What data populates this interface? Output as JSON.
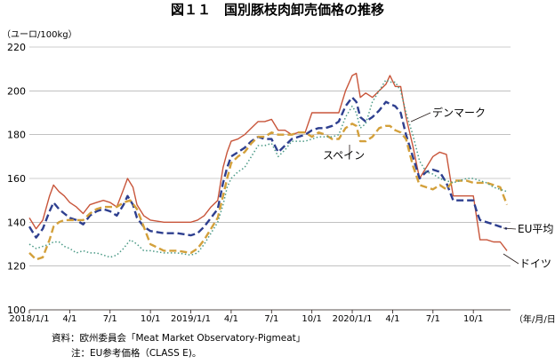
{
  "chart_data": {
    "type": "line",
    "title": "図１１　国別豚枝肉卸売価格の推移",
    "ylabel": "（ユーロ/100kg）",
    "xlabel": "（年/月/日）",
    "ylim": [
      100,
      220
    ],
    "yticks": [
      100,
      120,
      140,
      160,
      180,
      200,
      220
    ],
    "grid": "horizontal",
    "legend": "inline labels",
    "x_ticks": [
      {
        "x": 0,
        "label": "2018/1/1"
      },
      {
        "x": 3,
        "label": "4/1"
      },
      {
        "x": 6,
        "label": "7/1"
      },
      {
        "x": 9,
        "label": "10/1"
      },
      {
        "x": 12,
        "label": "2019/1/1"
      },
      {
        "x": 15,
        "label": "4/1"
      },
      {
        "x": 18,
        "label": "7/1"
      },
      {
        "x": 21,
        "label": "10/1"
      },
      {
        "x": 24,
        "label": "2020/1/1"
      },
      {
        "x": 27,
        "label": "4/1"
      },
      {
        "x": 30,
        "label": "7/1"
      },
      {
        "x": 33,
        "label": "10/1"
      }
    ],
    "series": [
      {
        "name": "デンマーク",
        "color": "#c8553a",
        "style": "solid",
        "points": [
          [
            0,
            142
          ],
          [
            0.5,
            137
          ],
          [
            1,
            141
          ],
          [
            1.5,
            152
          ],
          [
            1.8,
            157
          ],
          [
            2.2,
            154
          ],
          [
            2.6,
            152
          ],
          [
            3,
            149
          ],
          [
            3.5,
            147
          ],
          [
            4,
            144
          ],
          [
            4.5,
            148
          ],
          [
            5,
            149
          ],
          [
            5.5,
            150
          ],
          [
            6,
            149
          ],
          [
            6.5,
            147
          ],
          [
            7,
            155
          ],
          [
            7.3,
            160
          ],
          [
            7.7,
            156
          ],
          [
            8,
            148
          ],
          [
            8.5,
            143
          ],
          [
            9,
            141
          ],
          [
            10,
            140
          ],
          [
            11,
            140
          ],
          [
            12,
            140
          ],
          [
            12.5,
            141
          ],
          [
            13,
            143
          ],
          [
            13.5,
            147
          ],
          [
            14,
            150
          ],
          [
            14.4,
            165
          ],
          [
            14.7,
            172
          ],
          [
            15,
            177
          ],
          [
            15.5,
            178
          ],
          [
            16,
            180
          ],
          [
            16.5,
            183
          ],
          [
            17,
            186
          ],
          [
            17.5,
            186
          ],
          [
            18,
            187
          ],
          [
            18.5,
            182
          ],
          [
            19,
            182
          ],
          [
            19.5,
            180
          ],
          [
            20,
            181
          ],
          [
            20.5,
            181
          ],
          [
            21,
            190
          ],
          [
            21.5,
            190
          ],
          [
            22,
            190
          ],
          [
            22.5,
            190
          ],
          [
            23,
            190
          ],
          [
            23.5,
            200
          ],
          [
            24,
            207
          ],
          [
            24.3,
            208
          ],
          [
            24.6,
            197
          ],
          [
            25,
            199
          ],
          [
            25.5,
            197
          ],
          [
            26,
            200
          ],
          [
            26.5,
            203
          ],
          [
            26.8,
            207
          ],
          [
            27.2,
            202
          ],
          [
            27.6,
            202
          ],
          [
            28,
            188
          ],
          [
            28.5,
            175
          ],
          [
            29,
            160
          ],
          [
            29.5,
            165
          ],
          [
            30,
            170
          ],
          [
            30.5,
            172
          ],
          [
            31,
            171
          ],
          [
            31.5,
            152
          ],
          [
            32,
            152
          ],
          [
            32.5,
            152
          ],
          [
            33,
            152
          ],
          [
            33.3,
            140
          ],
          [
            33.5,
            132
          ],
          [
            34,
            132
          ],
          [
            34.5,
            131
          ],
          [
            35,
            131
          ],
          [
            35.5,
            127
          ]
        ]
      },
      {
        "name": "EU平均",
        "color": "#2e3f8f",
        "style": "dashed",
        "points": [
          [
            0,
            138
          ],
          [
            0.5,
            133
          ],
          [
            1,
            137
          ],
          [
            1.5,
            145
          ],
          [
            1.8,
            149
          ],
          [
            2.2,
            146
          ],
          [
            2.6,
            144
          ],
          [
            3,
            142
          ],
          [
            3.5,
            141
          ],
          [
            4,
            139
          ],
          [
            4.5,
            143
          ],
          [
            5,
            145
          ],
          [
            5.5,
            146
          ],
          [
            6,
            145
          ],
          [
            6.5,
            143
          ],
          [
            7,
            148
          ],
          [
            7.3,
            152
          ],
          [
            7.7,
            148
          ],
          [
            8,
            142
          ],
          [
            8.5,
            138
          ],
          [
            9,
            136
          ],
          [
            10,
            135
          ],
          [
            11,
            135
          ],
          [
            12,
            134
          ],
          [
            12.5,
            135
          ],
          [
            13,
            138
          ],
          [
            13.5,
            142
          ],
          [
            14,
            146
          ],
          [
            14.4,
            158
          ],
          [
            14.7,
            165
          ],
          [
            15,
            170
          ],
          [
            15.5,
            172
          ],
          [
            16,
            174
          ],
          [
            16.5,
            177
          ],
          [
            17,
            179
          ],
          [
            17.5,
            178
          ],
          [
            18,
            178
          ],
          [
            18.5,
            172
          ],
          [
            19,
            175
          ],
          [
            19.5,
            178
          ],
          [
            20,
            179
          ],
          [
            20.5,
            180
          ],
          [
            21,
            182
          ],
          [
            21.5,
            183
          ],
          [
            22,
            183
          ],
          [
            22.5,
            184
          ],
          [
            23,
            186
          ],
          [
            23.5,
            193
          ],
          [
            24,
            197
          ],
          [
            24.3,
            195
          ],
          [
            24.6,
            188
          ],
          [
            25,
            186
          ],
          [
            25.5,
            188
          ],
          [
            26,
            191
          ],
          [
            26.5,
            195
          ],
          [
            26.8,
            194
          ],
          [
            27.2,
            193
          ],
          [
            27.6,
            190
          ],
          [
            28,
            180
          ],
          [
            28.5,
            170
          ],
          [
            29,
            160
          ],
          [
            29.5,
            163
          ],
          [
            30,
            164
          ],
          [
            30.5,
            163
          ],
          [
            31,
            158
          ],
          [
            31.5,
            150
          ],
          [
            32,
            150
          ],
          [
            32.5,
            150
          ],
          [
            33,
            150
          ],
          [
            33.3,
            144
          ],
          [
            33.5,
            141
          ],
          [
            34,
            140
          ],
          [
            34.5,
            139
          ],
          [
            35,
            138
          ],
          [
            35.5,
            137
          ]
        ]
      },
      {
        "name": "スペイン",
        "color": "#d3a03b",
        "style": "dashed",
        "points": [
          [
            0,
            126
          ],
          [
            0.5,
            123
          ],
          [
            1,
            124
          ],
          [
            1.5,
            132
          ],
          [
            1.8,
            138
          ],
          [
            2.2,
            140
          ],
          [
            2.6,
            141
          ],
          [
            3,
            141
          ],
          [
            3.5,
            141
          ],
          [
            4,
            141
          ],
          [
            4.5,
            144
          ],
          [
            5,
            146
          ],
          [
            5.5,
            147
          ],
          [
            6,
            147
          ],
          [
            6.5,
            147
          ],
          [
            7,
            149
          ],
          [
            7.5,
            150
          ],
          [
            8,
            146
          ],
          [
            8.5,
            138
          ],
          [
            9,
            130
          ],
          [
            10,
            127
          ],
          [
            11,
            127
          ],
          [
            12,
            126
          ],
          [
            12.5,
            128
          ],
          [
            13,
            132
          ],
          [
            13.5,
            137
          ],
          [
            14,
            142
          ],
          [
            14.4,
            152
          ],
          [
            14.7,
            160
          ],
          [
            15,
            167
          ],
          [
            15.5,
            170
          ],
          [
            16,
            172
          ],
          [
            16.5,
            176
          ],
          [
            17,
            179
          ],
          [
            17.5,
            179
          ],
          [
            18,
            181
          ],
          [
            18.5,
            180
          ],
          [
            19,
            180
          ],
          [
            19.5,
            180
          ],
          [
            20,
            181
          ],
          [
            20.5,
            181
          ],
          [
            21,
            179
          ],
          [
            21.5,
            181
          ],
          [
            22,
            180
          ],
          [
            22.5,
            178
          ],
          [
            23,
            178
          ],
          [
            23.5,
            183
          ],
          [
            24,
            185
          ],
          [
            24.3,
            184
          ],
          [
            24.6,
            177
          ],
          [
            25,
            177
          ],
          [
            25.5,
            179
          ],
          [
            26,
            183
          ],
          [
            26.5,
            184
          ],
          [
            26.8,
            184
          ],
          [
            27.2,
            182
          ],
          [
            27.6,
            181
          ],
          [
            28,
            178
          ],
          [
            28.5,
            166
          ],
          [
            29,
            157
          ],
          [
            29.5,
            156
          ],
          [
            30,
            155
          ],
          [
            30.5,
            157
          ],
          [
            31,
            155
          ],
          [
            31.5,
            159
          ],
          [
            32,
            159
          ],
          [
            32.5,
            159
          ],
          [
            33,
            158
          ],
          [
            33.5,
            158
          ],
          [
            34,
            158
          ],
          [
            34.5,
            157
          ],
          [
            35,
            156
          ],
          [
            35.5,
            148
          ]
        ]
      },
      {
        "name": "ドイツ",
        "color": "#4b9a86",
        "style": "dotted",
        "points": [
          [
            0,
            130
          ],
          [
            0.5,
            128
          ],
          [
            1,
            129
          ],
          [
            1.5,
            130
          ],
          [
            1.8,
            131
          ],
          [
            2.2,
            131
          ],
          [
            2.6,
            129
          ],
          [
            3,
            128
          ],
          [
            3.5,
            126
          ],
          [
            4,
            127
          ],
          [
            4.5,
            126
          ],
          [
            5,
            126
          ],
          [
            5.5,
            125
          ],
          [
            6,
            124
          ],
          [
            6.5,
            125
          ],
          [
            7,
            128
          ],
          [
            7.5,
            132
          ],
          [
            8,
            130
          ],
          [
            8.5,
            127
          ],
          [
            9,
            127
          ],
          [
            10,
            126
          ],
          [
            11,
            126
          ],
          [
            12,
            125
          ],
          [
            12.5,
            126
          ],
          [
            13,
            130
          ],
          [
            13.5,
            135
          ],
          [
            14,
            140
          ],
          [
            14.4,
            148
          ],
          [
            14.7,
            156
          ],
          [
            15,
            160
          ],
          [
            15.5,
            163
          ],
          [
            16,
            165
          ],
          [
            16.5,
            170
          ],
          [
            17,
            175
          ],
          [
            17.5,
            175
          ],
          [
            18,
            176
          ],
          [
            18.5,
            170
          ],
          [
            19,
            173
          ],
          [
            19.5,
            177
          ],
          [
            20,
            177
          ],
          [
            20.5,
            177
          ],
          [
            21,
            178
          ],
          [
            21.5,
            179
          ],
          [
            22,
            179
          ],
          [
            22.5,
            179
          ],
          [
            23,
            180
          ],
          [
            23.5,
            188
          ],
          [
            24,
            193
          ],
          [
            24.3,
            190
          ],
          [
            24.6,
            183
          ],
          [
            25,
            185
          ],
          [
            25.5,
            195
          ],
          [
            26,
            200
          ],
          [
            26.5,
            205
          ],
          [
            26.8,
            204
          ],
          [
            27.2,
            204
          ],
          [
            27.6,
            200
          ],
          [
            28,
            190
          ],
          [
            28.5,
            180
          ],
          [
            29,
            168
          ],
          [
            29.5,
            163
          ],
          [
            30,
            162
          ],
          [
            30.5,
            160
          ],
          [
            31,
            159
          ],
          [
            31.5,
            158
          ],
          [
            32,
            159
          ],
          [
            32.5,
            160
          ],
          [
            33,
            160
          ],
          [
            33.5,
            159
          ],
          [
            34,
            158
          ],
          [
            34.5,
            156
          ],
          [
            35,
            155
          ],
          [
            35.5,
            154
          ]
        ]
      }
    ]
  },
  "labels": {
    "denmark": "デンマーク",
    "spain": "スペイン",
    "eu": "EU平均",
    "germany": "ドイツ"
  },
  "footnotes": {
    "source": "資料：欧州委員会「Meat Market Observatory-Pigmeat」",
    "note": "注：EU参考価格（CLASS E)。"
  }
}
